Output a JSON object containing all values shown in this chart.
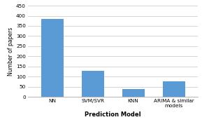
{
  "categories": [
    "NN",
    "SVM/SVR",
    "KNN",
    "ARIMA & similar\nmodels"
  ],
  "values": [
    383,
    128,
    37,
    75
  ],
  "bar_color": "#5B9BD5",
  "title": "",
  "xlabel": "Prediction Model",
  "ylabel": "Number of papers",
  "ylim": [
    0,
    450
  ],
  "yticks": [
    0,
    50,
    100,
    150,
    200,
    250,
    300,
    350,
    400,
    450
  ],
  "background_color": "#ffffff",
  "grid_color": "#d0d0d0"
}
